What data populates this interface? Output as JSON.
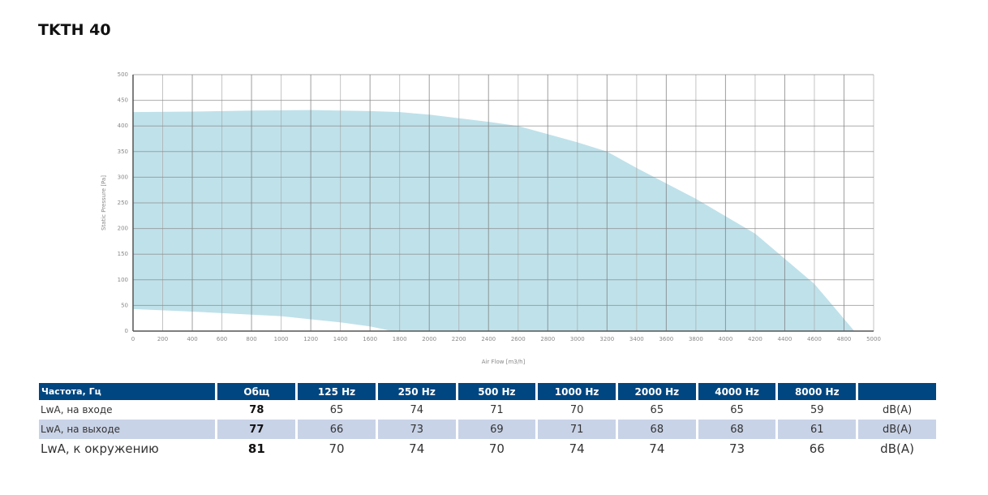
{
  "title": "TKTH 40",
  "chart_data": {
    "type": "area",
    "title": "TKTH 40",
    "xlabel": "Air Flow [m3/h]",
    "ylabel": "Static Pressure [Pa]",
    "xlim": [
      0,
      5000
    ],
    "ylim": [
      0,
      500
    ],
    "xticks": [
      0,
      200,
      400,
      600,
      800,
      1000,
      1200,
      1400,
      1600,
      1800,
      2000,
      2200,
      2400,
      2600,
      2800,
      3000,
      3200,
      3400,
      3600,
      3800,
      4000,
      4200,
      4400,
      4600,
      4800,
      5000
    ],
    "yticks": [
      0,
      50,
      100,
      150,
      200,
      250,
      300,
      350,
      400,
      450,
      500
    ],
    "grid": true,
    "fill_color": "#bfe1ea",
    "upper": {
      "x": [
        0,
        400,
        800,
        1200,
        1600,
        1800,
        2000,
        2400,
        2600,
        3000,
        3200,
        3400,
        3800,
        4200,
        4600,
        4870
      ],
      "y": [
        427,
        428,
        430,
        431,
        429,
        427,
        422,
        408,
        400,
        368,
        350,
        318,
        258,
        190,
        92,
        0
      ]
    },
    "lower": {
      "x": [
        0,
        400,
        800,
        1000,
        1200,
        1400,
        1600,
        1750
      ],
      "y": [
        43,
        38,
        32,
        29,
        23,
        17,
        9,
        0
      ]
    }
  },
  "table": {
    "headers": [
      "Частота, Гц",
      "Общ",
      "125 Hz",
      "250 Hz",
      "500 Hz",
      "1000 Hz",
      "2000 Hz",
      "4000 Hz",
      "8000 Hz",
      ""
    ],
    "rows": [
      {
        "label": "LwA, на входе",
        "total": "78",
        "values": [
          "65",
          "74",
          "71",
          "70",
          "65",
          "65",
          "59"
        ],
        "unit": "dB(A)"
      },
      {
        "label": "LwA, на выходе",
        "total": "77",
        "values": [
          "66",
          "73",
          "69",
          "71",
          "68",
          "68",
          "61"
        ],
        "unit": "dB(A)"
      },
      {
        "label": "LwA, к окружению",
        "total": "81",
        "values": [
          "70",
          "74",
          "70",
          "74",
          "74",
          "73",
          "66"
        ],
        "unit": "dB(A)"
      }
    ]
  }
}
